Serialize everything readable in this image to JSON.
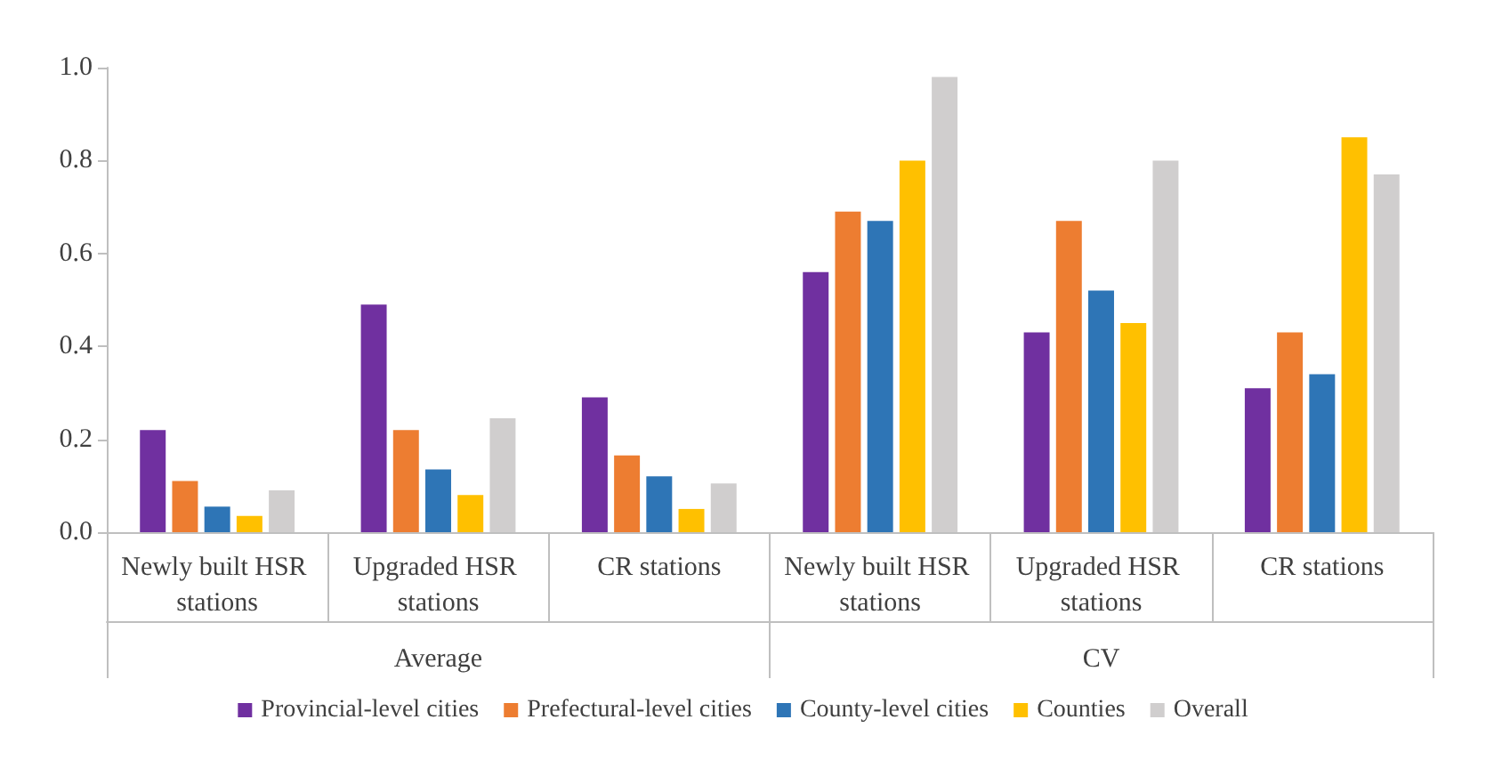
{
  "chart_data": {
    "type": "bar",
    "categories": [
      "Newly built HSR stations",
      "Upgraded HSR stations",
      "CR stations",
      "Newly built HSR stations",
      "Upgraded HSR stations",
      "CR stations"
    ],
    "annotations": [
      "Average",
      "CV"
    ],
    "series": [
      {
        "name": "Provincial-level cities",
        "color": "#7030a0",
        "values": [
          0.22,
          0.49,
          0.29,
          0.56,
          0.43,
          0.31
        ]
      },
      {
        "name": "Prefectural-level cities",
        "color": "#ed7d31",
        "values": [
          0.11,
          0.22,
          0.165,
          0.69,
          0.67,
          0.43
        ]
      },
      {
        "name": "County-level cities",
        "color": "#2e75b6",
        "values": [
          0.055,
          0.135,
          0.12,
          0.67,
          0.52,
          0.34
        ]
      },
      {
        "name": "Counties",
        "color": "#ffc000",
        "values": [
          0.035,
          0.08,
          0.05,
          0.8,
          0.45,
          0.85
        ]
      },
      {
        "name": "Overall",
        "color": "#d0cece",
        "values": [
          0.09,
          0.245,
          0.105,
          0.98,
          0.8,
          0.77
        ]
      }
    ],
    "ylim": [
      0,
      1
    ],
    "yticks": [
      {
        "value": 0,
        "label": "0.0"
      },
      0.2,
      0.4,
      0.6,
      0.8,
      {
        "value": 1,
        "label": "1.0"
      }
    ],
    "grid": false,
    "legend": "bottom"
  }
}
